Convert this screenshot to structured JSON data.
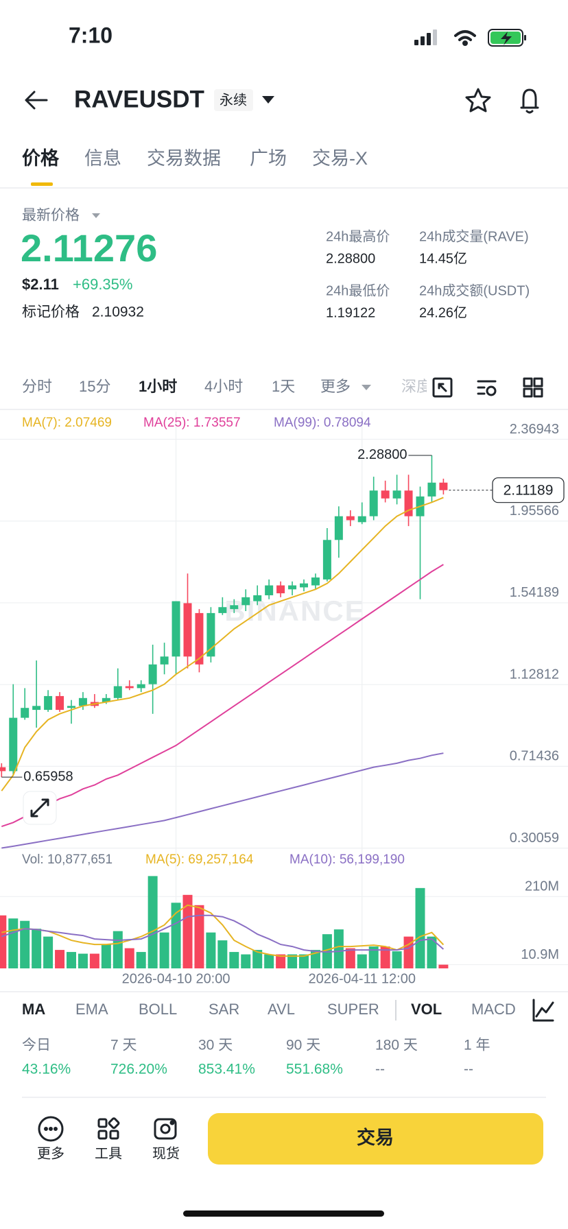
{
  "status_bar": {
    "time": "7:10"
  },
  "header": {
    "symbol": "RAVEUSDT",
    "badge": "永续"
  },
  "tabs": [
    {
      "label": "价格",
      "active": true
    },
    {
      "label": "信息"
    },
    {
      "label": "交易数据"
    },
    {
      "label": "广场"
    },
    {
      "label": "交易-X"
    }
  ],
  "ticker": {
    "last_price_title": "最新价格",
    "last_price": "2.11276",
    "usd_price": "$2.11",
    "change": "+69.35%",
    "mark_price_title": "标记价格",
    "mark_price": "2.10932",
    "stats": [
      {
        "label": "24h最高价",
        "value": "2.28800"
      },
      {
        "label": "24h成交量(RAVE)",
        "value": "14.45亿"
      },
      {
        "label": "24h最低价",
        "value": "1.19122"
      },
      {
        "label": "24h成交额(USDT)",
        "value": "24.26亿"
      }
    ]
  },
  "intervals": [
    {
      "label": "分时"
    },
    {
      "label": "15分"
    },
    {
      "label": "1小时",
      "active": true
    },
    {
      "label": "4小时"
    },
    {
      "label": "1天"
    },
    {
      "label": "更多"
    },
    {
      "label": "深度",
      "faded": true
    }
  ],
  "chart_data": {
    "type": "candlestick",
    "x": [
      null,
      null,
      null,
      null,
      null,
      null,
      null,
      null,
      null,
      null,
      null,
      null,
      null,
      null,
      null,
      "2026-04-10 20:00",
      null,
      null,
      null,
      null,
      null,
      null,
      null,
      null,
      null,
      null,
      null,
      null,
      null,
      null,
      null,
      "2026-04-11 12:00",
      null,
      null,
      null,
      null,
      null,
      null,
      null
    ],
    "open": [
      0.71,
      0.69,
      0.96,
      1.0,
      1.0,
      1.07,
      1.01,
      1.02,
      1.04,
      1.04,
      1.06,
      1.12,
      1.11,
      1.13,
      1.23,
      1.27,
      1.54,
      1.49,
      1.27,
      1.49,
      1.51,
      1.53,
      1.55,
      1.58,
      1.63,
      1.61,
      1.62,
      1.63,
      1.66,
      1.86,
      1.98,
      1.95,
      1.98,
      2.11,
      2.07,
      2.11,
      1.98,
      2.08,
      2.15
    ],
    "high": [
      0.73,
      1.13,
      1.11,
      1.25,
      1.1,
      1.09,
      1.05,
      1.09,
      1.08,
      1.08,
      1.21,
      1.15,
      1.15,
      1.33,
      1.34,
      1.55,
      1.69,
      1.51,
      1.52,
      1.57,
      1.56,
      1.61,
      1.63,
      1.66,
      1.65,
      1.65,
      1.66,
      1.69,
      1.92,
      2.03,
      2.01,
      2.05,
      2.18,
      2.16,
      2.19,
      2.19,
      2.13,
      2.288,
      2.17
    ],
    "low": [
      0.65958,
      0.67,
      0.95,
      0.91,
      0.99,
      0.99,
      0.93,
      1.0,
      1.01,
      1.03,
      1.05,
      1.1,
      1.09,
      0.98,
      1.18,
      1.18,
      1.21,
      1.19,
      1.24,
      1.48,
      1.49,
      1.5,
      1.53,
      1.56,
      1.57,
      1.58,
      1.6,
      1.61,
      1.65,
      1.77,
      1.93,
      1.94,
      1.96,
      2.05,
      2.04,
      1.93,
      1.56,
      2.05,
      2.09
    ],
    "close": [
      0.69,
      0.96,
      1.01,
      1.02,
      1.07,
      1.0,
      1.02,
      1.06,
      1.02,
      1.06,
      1.12,
      1.11,
      1.13,
      1.23,
      1.27,
      1.55,
      1.27,
      1.23,
      1.49,
      1.52,
      1.53,
      1.57,
      1.58,
      1.63,
      1.59,
      1.63,
      1.64,
      1.67,
      1.86,
      1.98,
      1.96,
      1.98,
      2.11,
      2.07,
      2.11,
      1.98,
      2.08,
      2.15,
      2.11189
    ],
    "volume": [
      155,
      146,
      139,
      116,
      93,
      54,
      48,
      43,
      43,
      70,
      109,
      59,
      48,
      270,
      105,
      192,
      215,
      185,
      105,
      82,
      48,
      41,
      54,
      41,
      41,
      41,
      41,
      54,
      100,
      114,
      59,
      41,
      64,
      64,
      50,
      93,
      235,
      93,
      10.877651
    ],
    "up_color": "#2ebd85",
    "down_color": "#f6465d",
    "ylim": [
      0.30059,
      2.51
    ],
    "yticks": [
      2.36943,
      1.95566,
      1.54189,
      1.12812,
      0.71436,
      0.30059
    ],
    "grid": true,
    "series": [
      {
        "name": "MA(7): 2.07469",
        "color": "#e6b422",
        "values": [
          0.59,
          0.67,
          0.81,
          0.89,
          0.95,
          0.98,
          1.0,
          1.02,
          1.03,
          1.04,
          1.05,
          1.06,
          1.08,
          1.1,
          1.13,
          1.18,
          1.22,
          1.26,
          1.31,
          1.36,
          1.41,
          1.45,
          1.49,
          1.53,
          1.55,
          1.57,
          1.59,
          1.61,
          1.64,
          1.69,
          1.75,
          1.81,
          1.87,
          1.93,
          1.98,
          2.01,
          2.03,
          2.05,
          2.07469
        ]
      },
      {
        "name": "MA(25): 1.73557",
        "color": "#df3f9a",
        "values": [
          0.41,
          0.43,
          0.46,
          0.49,
          0.52,
          0.55,
          0.57,
          0.6,
          0.62,
          0.65,
          0.67,
          0.7,
          0.73,
          0.76,
          0.79,
          0.82,
          0.86,
          0.9,
          0.94,
          0.98,
          1.02,
          1.06,
          1.1,
          1.14,
          1.18,
          1.22,
          1.26,
          1.3,
          1.34,
          1.38,
          1.42,
          1.46,
          1.5,
          1.54,
          1.58,
          1.62,
          1.66,
          1.7,
          1.73557
        ]
      },
      {
        "name": "MA(99): 0.78094",
        "color": "#8a6fc4",
        "values": [
          0.301,
          0.31,
          0.32,
          0.33,
          0.34,
          0.35,
          0.36,
          0.37,
          0.38,
          0.39,
          0.4,
          0.41,
          0.42,
          0.43,
          0.44,
          0.455,
          0.47,
          0.485,
          0.5,
          0.515,
          0.53,
          0.545,
          0.56,
          0.575,
          0.59,
          0.605,
          0.62,
          0.635,
          0.65,
          0.665,
          0.68,
          0.695,
          0.71,
          0.72,
          0.73,
          0.745,
          0.755,
          0.77,
          0.78094
        ]
      }
    ],
    "high_label": "2.28800",
    "low_label": "0.65958",
    "last_price_label": "2.11189",
    "watermark": "BINANCE",
    "volume_legend": "Vol: 10,877,651",
    "vol_ylim": [
      0,
      345
    ],
    "vol_yticks": [
      {
        "value": 210,
        "label": "210M"
      },
      {
        "value": 10.9,
        "label": "10.9M"
      }
    ],
    "volume_series": [
      {
        "name": "MA(5): 69,257,164",
        "color": "#e6b422",
        "values": [
          105,
          112,
          116,
          114,
          109,
          96,
          82,
          75,
          70,
          70,
          73,
          82,
          93,
          109,
          127,
          162,
          185,
          178,
          162,
          127,
          82,
          64,
          48,
          41,
          36,
          36,
          36,
          45,
          54,
          64,
          64,
          66,
          68,
          64,
          54,
          70,
          93,
          105,
          69.257164
        ]
      },
      {
        "name": "MA(10): 56,199,190",
        "color": "#8a6fc4",
        "values": [
          93,
          105,
          116,
          114,
          109,
          105,
          100,
          96,
          86,
          84,
          82,
          84,
          86,
          100,
          116,
          132,
          151,
          155,
          155,
          151,
          139,
          121,
          100,
          86,
          70,
          64,
          54,
          50,
          48,
          50,
          54,
          54,
          54,
          54,
          54,
          59,
          82,
          86,
          56.19919
        ]
      }
    ]
  },
  "indicators": [
    {
      "label": "MA",
      "active": true
    },
    {
      "label": "EMA"
    },
    {
      "label": "BOLL"
    },
    {
      "label": "SAR"
    },
    {
      "label": "AVL"
    },
    {
      "label": "SUPER"
    },
    {
      "label": "VOL",
      "active": true
    },
    {
      "label": "MACD"
    }
  ],
  "performance": [
    {
      "period": "今日",
      "change": "43.16%"
    },
    {
      "period": "7 天",
      "change": "726.20%"
    },
    {
      "period": "30 天",
      "change": "853.41%"
    },
    {
      "period": "90 天",
      "change": "551.68%"
    },
    {
      "period": "180 天",
      "change": "--"
    },
    {
      "period": "1 年",
      "change": "--"
    }
  ],
  "bottom_bar": {
    "actions": [
      "更多",
      "工具",
      "现货"
    ],
    "trade": "交易"
  }
}
